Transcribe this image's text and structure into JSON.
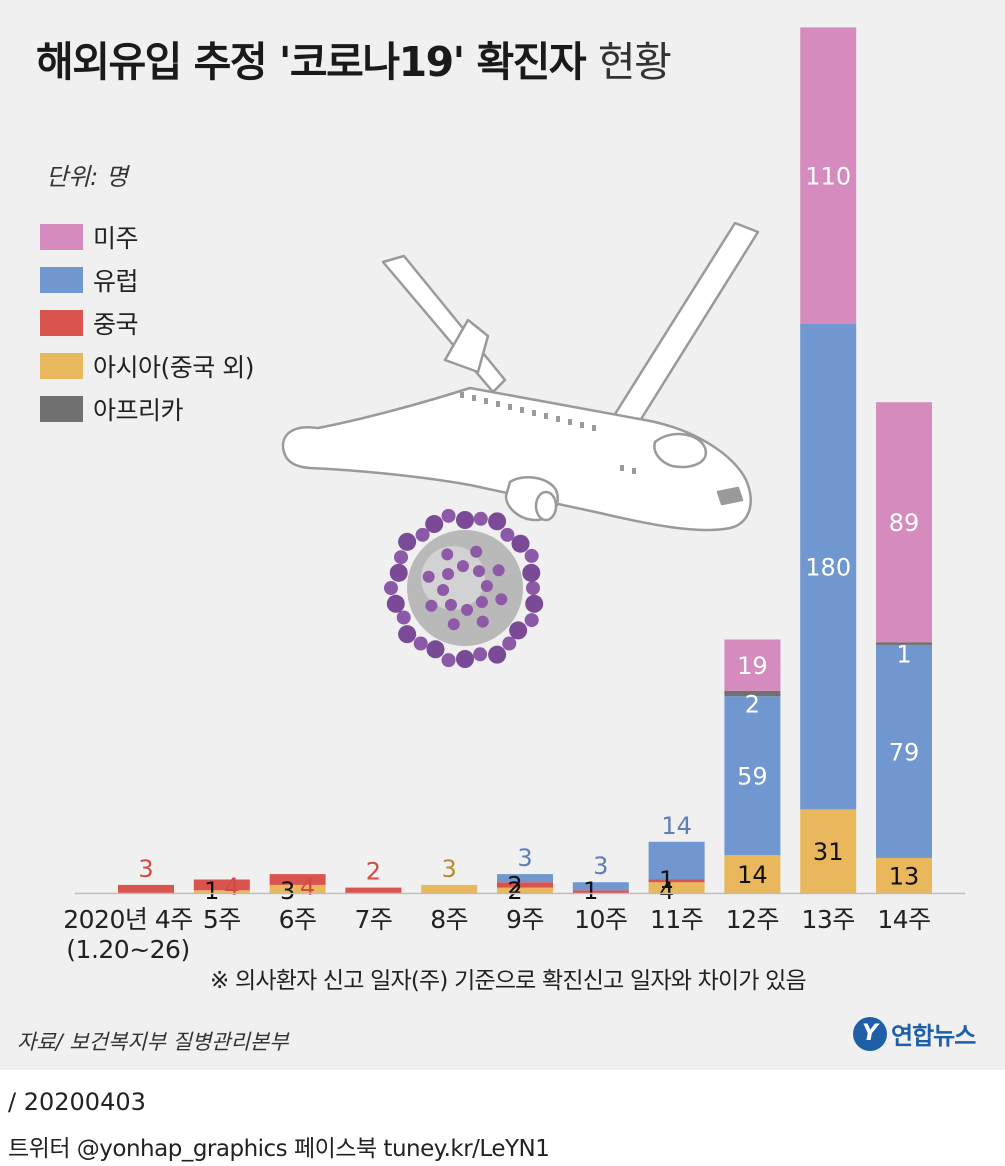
{
  "header": {
    "title_main": "해외유입 추정 '코로나19' 확진자",
    "title_light": "현황",
    "unit": "단위: 명"
  },
  "chart_data": {
    "type": "bar",
    "stacked": true,
    "title": "해외유입 추정 '코로나19' 확진자 현황",
    "xlabel": "",
    "ylabel": "",
    "ylim": [
      0,
      323
    ],
    "categories": [
      "2020년 4주\n(1.20~26)",
      "5주",
      "6주",
      "7주",
      "8주",
      "9주",
      "10주",
      "11주",
      "12주",
      "13주",
      "14주"
    ],
    "series": [
      {
        "name": "아시아(중국 외)",
        "color": "#e9b75c",
        "values": [
          0,
          1,
          3,
          0,
          3,
          2,
          0,
          4,
          14,
          31,
          13
        ],
        "labels": [
          "",
          "1",
          "3",
          "",
          "3",
          "2",
          "",
          "4",
          "14",
          "31",
          "13"
        ]
      },
      {
        "name": "중국",
        "color": "#d9534f",
        "values": [
          3,
          4,
          4,
          2,
          0,
          2,
          1,
          1,
          0,
          0,
          0
        ],
        "labels": [
          "3",
          "4",
          "4",
          "2",
          "",
          "2",
          "1",
          "1",
          "",
          "",
          ""
        ]
      },
      {
        "name": "유럽",
        "color": "#7097cf",
        "values": [
          0,
          0,
          0,
          0,
          0,
          3,
          3,
          14,
          59,
          180,
          79
        ],
        "labels": [
          "",
          "",
          "",
          "",
          "",
          "3",
          "3",
          "14",
          "59",
          "180",
          "79"
        ]
      },
      {
        "name": "아프리카",
        "color": "#707070",
        "values": [
          0,
          0,
          0,
          0,
          0,
          0,
          0,
          0,
          2,
          0,
          1
        ],
        "labels": [
          "",
          "",
          "",
          "",
          "",
          "",
          "",
          "",
          "2",
          "",
          "1"
        ]
      },
      {
        "name": "미주",
        "color": "#d58bbd",
        "values": [
          0,
          0,
          0,
          0,
          0,
          0,
          0,
          0,
          19,
          110,
          89
        ],
        "labels": [
          "",
          "",
          "",
          "",
          "",
          "",
          "",
          "",
          "19",
          "110",
          "89"
        ]
      }
    ],
    "legend": {
      "position": "top-left",
      "items": [
        {
          "name": "미주",
          "color": "#d58bbd"
        },
        {
          "name": "유럽",
          "color": "#7097cf"
        },
        {
          "name": "중국",
          "color": "#d9534f"
        },
        {
          "name": "아시아(중국 외)",
          "color": "#e9b75c"
        },
        {
          "name": "아프리카",
          "color": "#707070"
        }
      ]
    }
  },
  "footer": {
    "note": "※ 의사환자 신고 일자(주) 기준으로 확진신고 일자와 차이가 있음",
    "source": "자료/ 보건복지부 질병관리본부",
    "logo_mark": "Y",
    "logo_text": "연합뉴스",
    "date": "/ 20200403",
    "social": "트위터 @yonhap_graphics  페이스북 tuney.kr/LeYN1"
  },
  "decor": {
    "airplane": "airplane-icon",
    "virus": "virus-icon"
  }
}
